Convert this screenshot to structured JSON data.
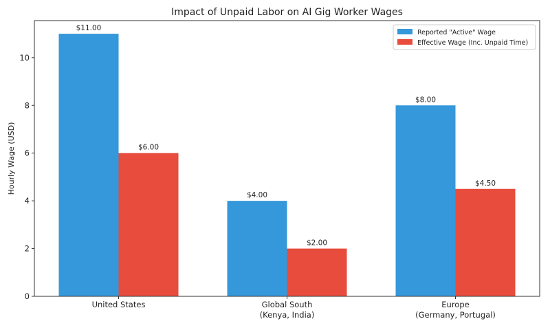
{
  "chart_data": {
    "type": "bar",
    "title": "Impact of Unpaid Labor on AI Gig Worker Wages",
    "xlabel": "",
    "ylabel": "Hourly Wage (USD)",
    "categories": [
      "United States",
      "Global South\n(Kenya, India)",
      "Europe\n(Germany, Portugal)"
    ],
    "series": [
      {
        "name": "Reported \"Active\" Wage",
        "values": [
          11.0,
          4.0,
          8.0
        ],
        "labels": [
          "$11.00",
          "$4.00",
          "$8.00"
        ],
        "color": "#3498db"
      },
      {
        "name": "Effective Wage (Inc. Unpaid Time)",
        "values": [
          6.0,
          2.0,
          4.5
        ],
        "labels": [
          "$6.00",
          "$2.00",
          "$4.50"
        ],
        "color": "#e74c3c"
      }
    ],
    "ylim": [
      0,
      11.55
    ],
    "yticks": [
      0,
      2,
      4,
      6,
      8,
      10
    ],
    "grid": false,
    "legend": "top-right"
  }
}
